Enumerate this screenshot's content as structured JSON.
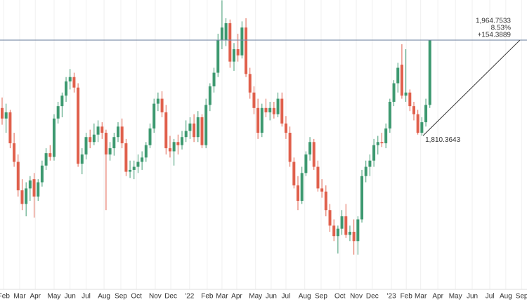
{
  "chart_data": {
    "type": "candlestick",
    "up_color": "#3d9970",
    "down_color": "#e0604c",
    "ylim": [
      1562,
      2029.5
    ],
    "xlim": [
      -0.53,
      131.3
    ],
    "xticks": [
      {
        "value": 0.4,
        "label": "Feb"
      },
      {
        "value": 4.4,
        "label": "Mar"
      },
      {
        "value": 8.3,
        "label": "Apr"
      },
      {
        "value": 13,
        "label": "May"
      },
      {
        "value": 17,
        "label": "Jun"
      },
      {
        "value": 21,
        "label": "Jul"
      },
      {
        "value": 25.5,
        "label": "Aug"
      },
      {
        "value": 29.7,
        "label": "Sep"
      },
      {
        "value": 33.6,
        "label": "Oct"
      },
      {
        "value": 38.3,
        "label": "Nov"
      },
      {
        "value": 42.2,
        "label": "Dec"
      },
      {
        "value": 46.9,
        "label": "'22"
      },
      {
        "value": 51.3,
        "label": "Feb"
      },
      {
        "value": 55,
        "label": "Mar"
      },
      {
        "value": 58.7,
        "label": "Apr"
      },
      {
        "value": 63.4,
        "label": "May"
      },
      {
        "value": 67.3,
        "label": "Jun"
      },
      {
        "value": 71,
        "label": "Jul"
      },
      {
        "value": 75.7,
        "label": "Aug"
      },
      {
        "value": 79.8,
        "label": "Sep"
      },
      {
        "value": 84.5,
        "label": "Oct"
      },
      {
        "value": 88.6,
        "label": "Nov"
      },
      {
        "value": 92.6,
        "label": "Dec"
      },
      {
        "value": 97.4,
        "label": "'23"
      },
      {
        "value": 101.1,
        "label": "Feb"
      },
      {
        "value": 104.7,
        "label": "Mar"
      },
      {
        "value": 109,
        "label": "Apr"
      },
      {
        "value": 113.4,
        "label": "May"
      },
      {
        "value": 117.6,
        "label": "Jun"
      },
      {
        "value": 122,
        "label": "Jul"
      },
      {
        "value": 126,
        "label": "Aug"
      },
      {
        "value": 130,
        "label": "Sep"
      }
    ],
    "ohlc": [
      [
        1855,
        1872,
        1828,
        1838
      ],
      [
        1838,
        1862,
        1815,
        1848
      ],
      [
        1848,
        1852,
        1790,
        1798
      ],
      [
        1798,
        1815,
        1760,
        1768
      ],
      [
        1768,
        1780,
        1712,
        1722
      ],
      [
        1722,
        1740,
        1690,
        1700
      ],
      [
        1700,
        1735,
        1680,
        1725
      ],
      [
        1725,
        1745,
        1705,
        1738
      ],
      [
        1740,
        1750,
        1678,
        1712
      ],
      [
        1712,
        1740,
        1705,
        1735
      ],
      [
        1735,
        1770,
        1728,
        1762
      ],
      [
        1762,
        1790,
        1755,
        1782
      ],
      [
        1782,
        1795,
        1770,
        1776
      ],
      [
        1776,
        1845,
        1770,
        1838
      ],
      [
        1838,
        1865,
        1830,
        1858
      ],
      [
        1858,
        1880,
        1840,
        1875
      ],
      [
        1875,
        1905,
        1865,
        1898
      ],
      [
        1898,
        1918,
        1885,
        1905
      ],
      [
        1905,
        1912,
        1880,
        1888
      ],
      [
        1888,
        1895,
        1760,
        1765
      ],
      [
        1765,
        1790,
        1748,
        1780
      ],
      [
        1780,
        1815,
        1772,
        1808
      ],
      [
        1808,
        1820,
        1790,
        1800
      ],
      [
        1800,
        1830,
        1795,
        1812
      ],
      [
        1812,
        1835,
        1800,
        1825
      ],
      [
        1825,
        1832,
        1805,
        1815
      ],
      [
        1815,
        1820,
        1690,
        1780
      ],
      [
        1780,
        1800,
        1770,
        1790
      ],
      [
        1790,
        1815,
        1778,
        1808
      ],
      [
        1808,
        1832,
        1800,
        1825
      ],
      [
        1825,
        1838,
        1790,
        1798
      ],
      [
        1798,
        1805,
        1745,
        1752
      ],
      [
        1752,
        1770,
        1742,
        1755
      ],
      [
        1755,
        1770,
        1740,
        1760
      ],
      [
        1760,
        1780,
        1750,
        1768
      ],
      [
        1768,
        1785,
        1755,
        1775
      ],
      [
        1775,
        1800,
        1768,
        1795
      ],
      [
        1795,
        1830,
        1790,
        1822
      ],
      [
        1822,
        1870,
        1815,
        1862
      ],
      [
        1862,
        1880,
        1850,
        1870
      ],
      [
        1870,
        1882,
        1840,
        1848
      ],
      [
        1848,
        1860,
        1780,
        1790
      ],
      [
        1790,
        1810,
        1775,
        1785
      ],
      [
        1785,
        1805,
        1762,
        1800
      ],
      [
        1800,
        1812,
        1780,
        1795
      ],
      [
        1795,
        1818,
        1788,
        1808
      ],
      [
        1808,
        1835,
        1800,
        1818
      ],
      [
        1818,
        1840,
        1805,
        1830
      ],
      [
        1830,
        1845,
        1800,
        1808
      ],
      [
        1808,
        1850,
        1800,
        1840
      ],
      [
        1840,
        1845,
        1790,
        1795
      ],
      [
        1795,
        1870,
        1790,
        1860
      ],
      [
        1860,
        1895,
        1850,
        1890
      ],
      [
        1890,
        1920,
        1880,
        1912
      ],
      [
        1912,
        1975,
        1905,
        1965
      ],
      [
        1965,
        2029,
        1950,
        1985
      ],
      [
        1965,
        2000,
        1955,
        1992
      ],
      [
        1992,
        1998,
        1920,
        1930
      ],
      [
        1930,
        1960,
        1915,
        1950
      ],
      [
        1950,
        1975,
        1930,
        1940
      ],
      [
        1940,
        1995,
        1935,
        1985
      ],
      [
        1985,
        2000,
        1905,
        1910
      ],
      [
        1910,
        1920,
        1870,
        1880
      ],
      [
        1880,
        1890,
        1845,
        1855
      ],
      [
        1855,
        1870,
        1805,
        1815
      ],
      [
        1815,
        1862,
        1808,
        1855
      ],
      [
        1855,
        1870,
        1840,
        1848
      ],
      [
        1848,
        1865,
        1835,
        1855
      ],
      [
        1855,
        1865,
        1838,
        1845
      ],
      [
        1845,
        1880,
        1840,
        1870
      ],
      [
        1870,
        1880,
        1825,
        1830
      ],
      [
        1830,
        1842,
        1805,
        1815
      ],
      [
        1815,
        1825,
        1760,
        1768
      ],
      [
        1768,
        1775,
        1725,
        1730
      ],
      [
        1730,
        1745,
        1690,
        1705
      ],
      [
        1705,
        1760,
        1700,
        1750
      ],
      [
        1750,
        1785,
        1745,
        1780
      ],
      [
        1780,
        1808,
        1770,
        1800
      ],
      [
        1800,
        1805,
        1755,
        1760
      ],
      [
        1760,
        1770,
        1720,
        1725
      ],
      [
        1725,
        1740,
        1710,
        1720
      ],
      [
        1720,
        1730,
        1680,
        1690
      ],
      [
        1690,
        1700,
        1655,
        1665
      ],
      [
        1665,
        1675,
        1640,
        1648
      ],
      [
        1648,
        1665,
        1620,
        1660
      ],
      [
        1660,
        1690,
        1650,
        1680
      ],
      [
        1680,
        1700,
        1645,
        1650
      ],
      [
        1650,
        1665,
        1640,
        1655
      ],
      [
        1655,
        1675,
        1618,
        1640
      ],
      [
        1640,
        1680,
        1618,
        1675
      ],
      [
        1675,
        1755,
        1670,
        1745
      ],
      [
        1745,
        1770,
        1735,
        1760
      ],
      [
        1760,
        1780,
        1745,
        1770
      ],
      [
        1770,
        1805,
        1760,
        1795
      ],
      [
        1795,
        1810,
        1780,
        1800
      ],
      [
        1800,
        1815,
        1792,
        1798
      ],
      [
        1798,
        1830,
        1790,
        1822
      ],
      [
        1822,
        1870,
        1815,
        1865
      ],
      [
        1865,
        1900,
        1858,
        1895
      ],
      [
        1895,
        1928,
        1880,
        1920
      ],
      [
        1925,
        1958,
        1870,
        1875
      ],
      [
        1875,
        1950,
        1865,
        1880
      ],
      [
        1880,
        1885,
        1850,
        1858
      ],
      [
        1858,
        1865,
        1835,
        1845
      ],
      [
        1845,
        1852,
        1812,
        1815
      ],
      [
        1815,
        1840,
        1810.3643,
        1832
      ],
      [
        1832,
        1870,
        1825,
        1860
      ],
      [
        1860,
        1965,
        1855,
        1964.7533
      ]
    ],
    "measure": {
      "high": {
        "value": 1964.7533,
        "label": "1,964.7533"
      },
      "change_pct": {
        "value": 8.53,
        "label": "8.53%"
      },
      "change": {
        "value": 154.3889,
        "label": "+154.3889"
      },
      "low": {
        "value": 1810.3643,
        "label": "1,810.3643"
      }
    }
  }
}
